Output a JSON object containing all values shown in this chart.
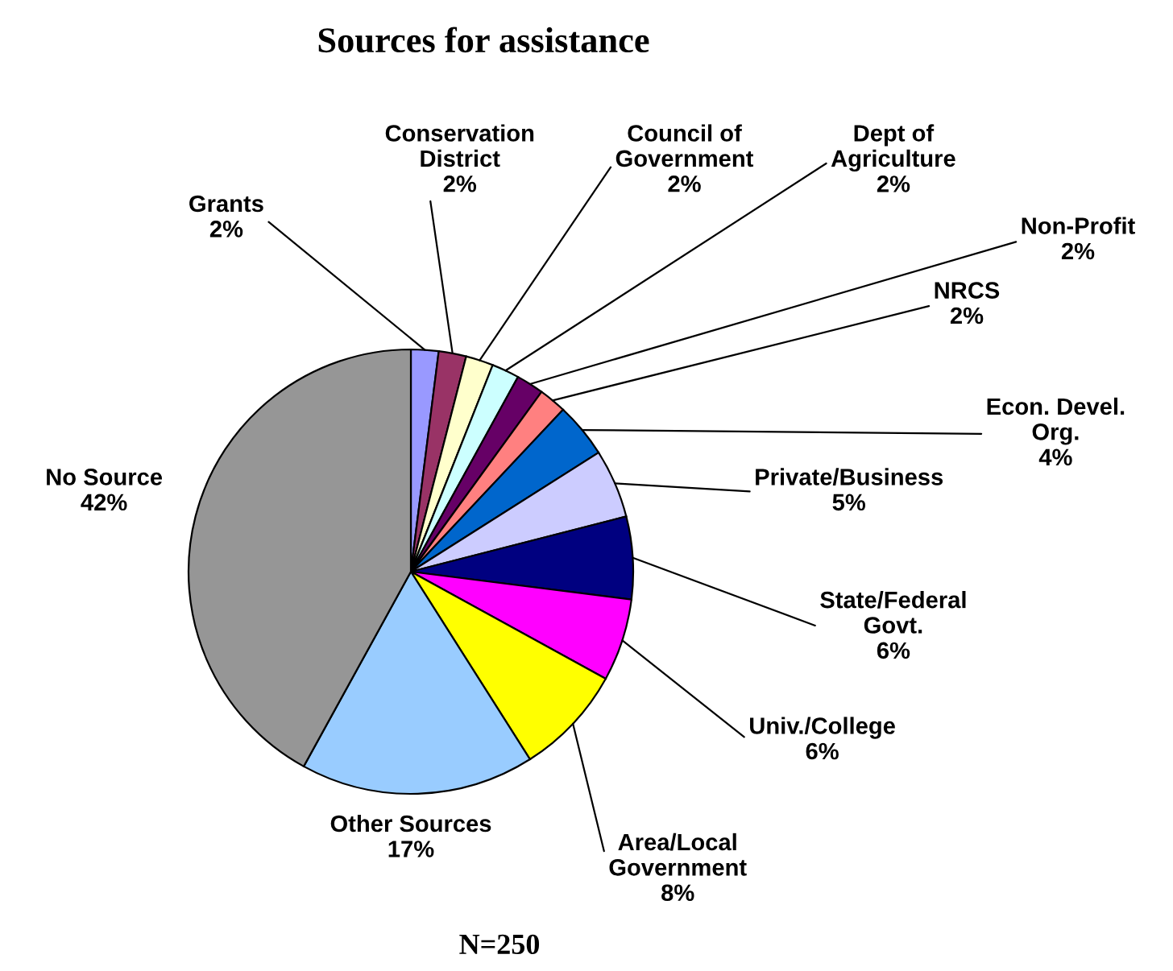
{
  "chart_data": {
    "type": "pie",
    "title": "Sources for assistance",
    "categories": [
      "Grants",
      "Conservation\nDistrict",
      "Council of\nGovernment",
      "Dept of\nAgriculture",
      "Non-Profit",
      "NRCS",
      "Econ. Devel.\nOrg.",
      "Private/Business",
      "State/Federal\nGovt.",
      "Univ./College",
      "Area/Local\nGovernment",
      "Other Sources",
      "No Source"
    ],
    "values": [
      2,
      2,
      2,
      2,
      2,
      2,
      4,
      5,
      6,
      6,
      8,
      17,
      42
    ],
    "value_labels": [
      "2%",
      "2%",
      "2%",
      "2%",
      "2%",
      "2%",
      "4%",
      "5%",
      "6%",
      "6%",
      "8%",
      "17%",
      "42%"
    ],
    "colors": [
      "#9999ff",
      "#993366",
      "#ffffcc",
      "#ccffff",
      "#660066",
      "#ff8080",
      "#0066cc",
      "#ccccff",
      "#000080",
      "#ff00ff",
      "#ffff00",
      "#99ccff",
      "#969696"
    ],
    "annotations": [
      "N=250"
    ],
    "legend": false
  }
}
